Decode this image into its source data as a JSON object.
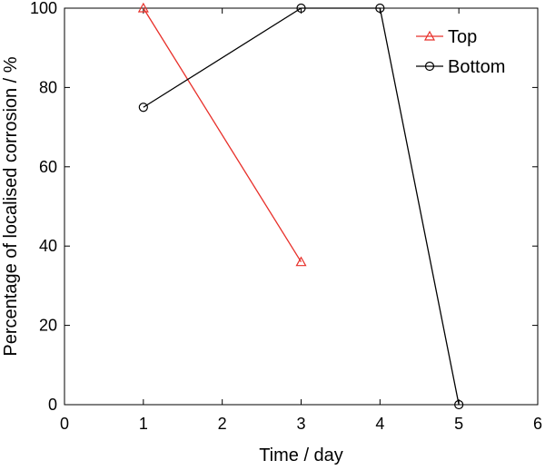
{
  "chart_data": {
    "type": "line",
    "title": "",
    "xlabel": "Time / day",
    "ylabel": "Percentage of localised corrosion / %",
    "xlim": [
      0,
      6
    ],
    "ylim": [
      0,
      100
    ],
    "xticks": [
      0,
      1,
      2,
      3,
      4,
      5,
      6
    ],
    "yticks": [
      0,
      20,
      40,
      60,
      80,
      100
    ],
    "grid": false,
    "legend_position": "top-right",
    "series": [
      {
        "name": "Top",
        "color": "#e8302a",
        "marker": "triangle",
        "x": [
          1,
          3
        ],
        "y": [
          100,
          36
        ]
      },
      {
        "name": "Bottom",
        "color": "#000000",
        "marker": "circle",
        "x": [
          1,
          3,
          4,
          5
        ],
        "y": [
          75,
          100,
          100,
          0
        ]
      }
    ]
  }
}
